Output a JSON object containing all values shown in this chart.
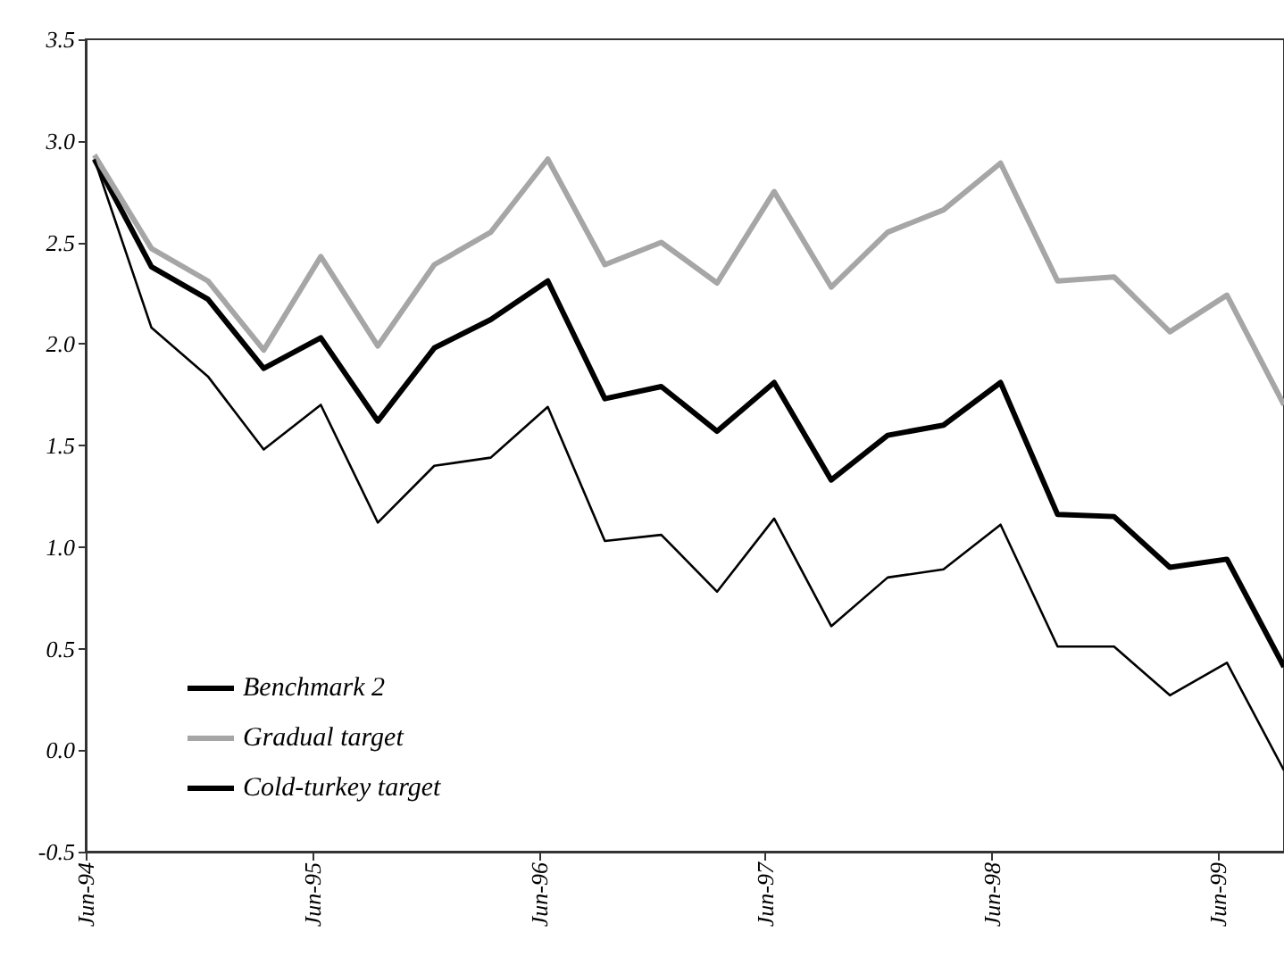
{
  "chart_data": {
    "type": "line",
    "x": [
      "1994-06-15",
      "1994-09-15",
      "1994-12-15",
      "1995-03-15",
      "1995-06-15",
      "1995-09-15",
      "1995-12-15",
      "1996-03-15",
      "1996-06-15",
      "1996-09-15",
      "1996-12-15",
      "1997-03-15",
      "1997-06-15",
      "1997-09-15",
      "1997-12-15",
      "1998-03-15",
      "1998-06-15",
      "1998-09-15",
      "1998-12-15",
      "1999-03-15",
      "1999-06-15",
      "1999-09-15"
    ],
    "series": [
      {
        "name": "Benchmark 2",
        "color": "#000000",
        "values": [
          2.91,
          2.38,
          2.22,
          1.88,
          2.03,
          1.62,
          1.98,
          2.12,
          2.31,
          1.73,
          1.79,
          1.57,
          1.81,
          1.33,
          1.55,
          1.6,
          1.81,
          1.16,
          1.15,
          0.9,
          0.94,
          0.41
        ]
      },
      {
        "name": "Gradual target",
        "color": "#a6a6a6",
        "values": [
          2.93,
          2.47,
          2.31,
          1.97,
          2.43,
          1.99,
          2.39,
          2.55,
          2.91,
          2.39,
          2.5,
          2.3,
          2.75,
          2.28,
          2.55,
          2.66,
          2.89,
          2.31,
          2.33,
          2.06,
          2.24,
          1.7
        ]
      },
      {
        "name": "Cold-turkey target",
        "color": "#000000",
        "values": [
          2.91,
          2.08,
          1.84,
          1.48,
          1.7,
          1.12,
          1.4,
          1.44,
          1.69,
          1.03,
          1.06,
          0.78,
          1.14,
          0.61,
          0.85,
          0.89,
          1.11,
          0.51,
          0.51,
          0.27,
          0.43,
          -0.1
        ]
      }
    ],
    "xlim": [
      "1994-06-01",
      "1999-09-15"
    ],
    "xticks": [
      {
        "value": "1994-06-01",
        "label": "Jun-94"
      },
      {
        "value": "1995-06-01",
        "label": "Jun-95"
      },
      {
        "value": "1996-06-01",
        "label": "Jun-96"
      },
      {
        "value": "1997-06-01",
        "label": "Jun-97"
      },
      {
        "value": "1998-06-01",
        "label": "Jun-98"
      },
      {
        "value": "1999-06-01",
        "label": "Jun-99"
      }
    ],
    "ylim": [
      -0.5,
      3.5
    ],
    "yticks": [
      {
        "value": -0.5,
        "label": "-0.5"
      },
      {
        "value": 0,
        "label": "0.0"
      },
      {
        "value": 0.5,
        "label": "0.5"
      },
      {
        "value": 1,
        "label": "1.0"
      },
      {
        "value": 1.5,
        "label": "1.5"
      },
      {
        "value": 2,
        "label": "2.0"
      },
      {
        "value": 2.5,
        "label": "2.5"
      },
      {
        "value": 3,
        "label": "3.0"
      },
      {
        "value": 3.5,
        "label": "3.5"
      }
    ],
    "grid": false,
    "legend": "bottom left",
    "marker": "none",
    "line_style": "solid"
  }
}
